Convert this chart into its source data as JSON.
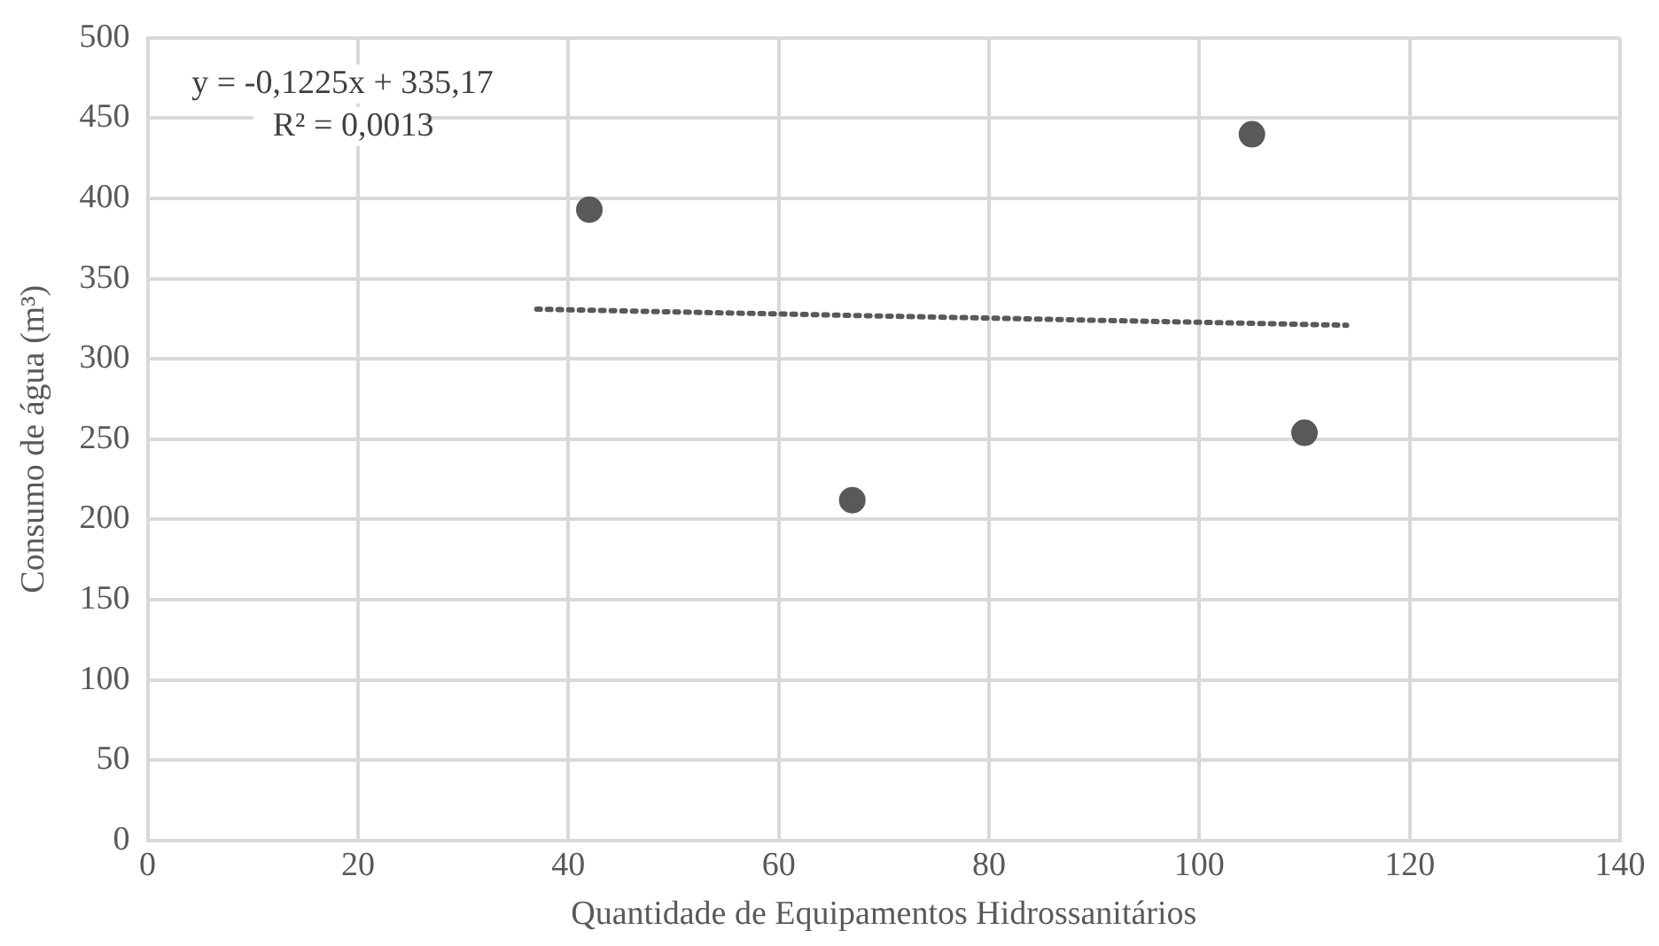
{
  "chart_data": {
    "type": "scatter",
    "xlabel": "Quantidade de Equipamentos Hidrossanitários",
    "ylabel": "Consumo de água (m³)",
    "series": [
      {
        "color": "#595959",
        "x": [
          42,
          67,
          105,
          110
        ],
        "values": [
          393,
          212,
          440,
          254
        ],
        "marker": "circle"
      },
      {
        "type": "line",
        "color": "#595959",
        "x": [
          37,
          114
        ],
        "values": [
          331,
          321
        ],
        "line_style": "dotted",
        "marker": "none"
      }
    ],
    "xlim": [
      0,
      140
    ],
    "xticks": [
      0,
      20,
      40,
      60,
      80,
      100,
      120,
      140
    ],
    "ylim": [
      0,
      500
    ],
    "yticks": [
      0,
      50,
      100,
      150,
      200,
      250,
      300,
      350,
      400,
      450,
      500
    ],
    "grid": true,
    "legend": false,
    "annotations": [
      "y = -0,1225x + 335,17",
      "R² = 0,0013"
    ]
  }
}
